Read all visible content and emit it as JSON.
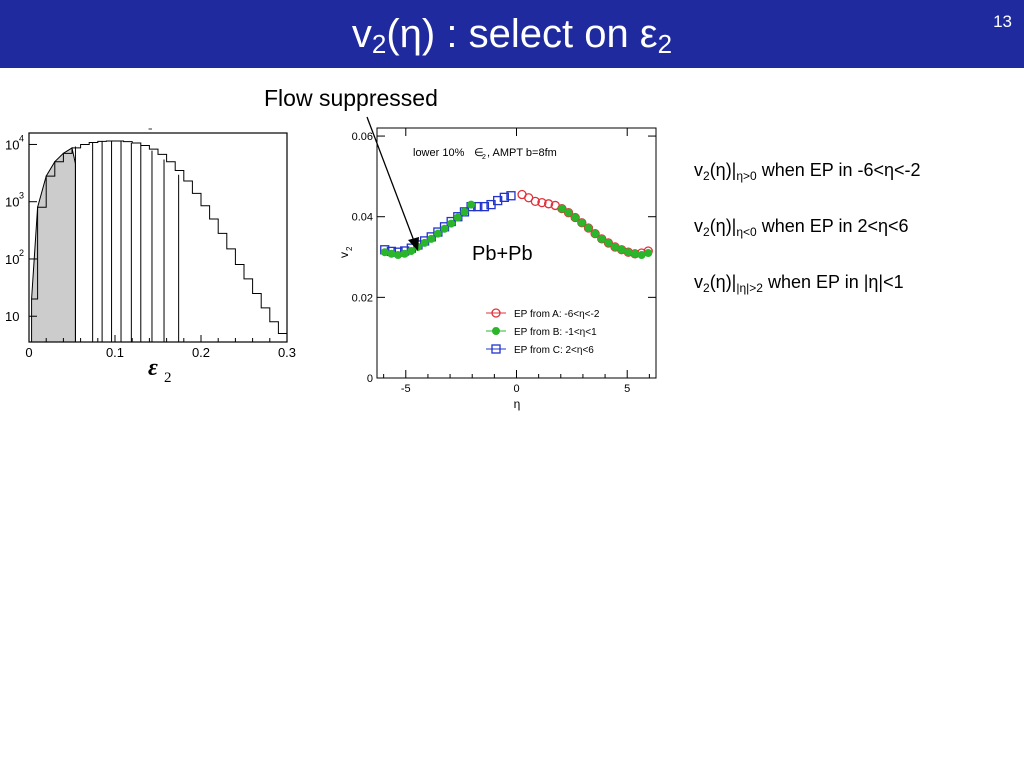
{
  "slide": {
    "title_main": "v",
    "title_sub": "2",
    "title_mid": "(η) : select on ε",
    "title_sub2": "2",
    "page_number": "13",
    "annotation": "Flow suppressed"
  },
  "bullets": [
    {
      "pre": "v",
      "sub1": "2",
      "mid": "(η)|",
      "sub2": "η>0",
      "post": " when EP in -6<η<-2"
    },
    {
      "pre": "v",
      "sub1": "2",
      "mid": "(η)|",
      "sub2": "η<0",
      "post": " when EP in 2<η<6"
    },
    {
      "pre": "v",
      "sub1": "2",
      "mid": "(η)|",
      "sub2": "|η|>2",
      "post": " when EP in |η|<1"
    }
  ],
  "colors": {
    "header": "#1e2a9e",
    "seriesA": "#e0303a",
    "seriesB": "#2bb52b",
    "seriesC": "#2233cc",
    "fill": "#cccccc"
  },
  "chart_data": [
    {
      "type": "area",
      "xlabel": "ε",
      "xlabel_sub": "2",
      "xlim": [
        0,
        0.3
      ],
      "ylim_log10": [
        0.55,
        4.2
      ],
      "ylog": true,
      "xticks": [
        "0",
        "0.1",
        "0.2",
        "0.3"
      ],
      "xtick_values": [
        0,
        0.1,
        0.2,
        0.3
      ],
      "yticks": [
        {
          "base": "10",
          "exp": "4",
          "value": 10000
        },
        {
          "base": "10",
          "exp": "3",
          "value": 1000
        },
        {
          "base": "10",
          "exp": "2",
          "value": 100
        },
        {
          "base": "10",
          "exp": "",
          "value": 10
        }
      ],
      "histogram_x": [
        0.003,
        0.01,
        0.02,
        0.03,
        0.04,
        0.05,
        0.06,
        0.07,
        0.08,
        0.09,
        0.1,
        0.11,
        0.12,
        0.13,
        0.14,
        0.15,
        0.16,
        0.17,
        0.18,
        0.19,
        0.2,
        0.21,
        0.22,
        0.23,
        0.24,
        0.25,
        0.26,
        0.27,
        0.28,
        0.29,
        0.3
      ],
      "histogram_y": [
        20,
        800,
        2800,
        5000,
        7000,
        8700,
        10000,
        10800,
        11300,
        11500,
        11500,
        11200,
        10600,
        9600,
        8300,
        6700,
        5000,
        3500,
        2300,
        1400,
        850,
        500,
        280,
        150,
        80,
        45,
        25,
        14,
        8,
        5,
        4
      ],
      "shaded_upper_edge": 0.054,
      "bin_edges": [
        0.054,
        0.074,
        0.085,
        0.096,
        0.107,
        0.119,
        0.13,
        0.143,
        0.157,
        0.174
      ]
    },
    {
      "type": "scatter",
      "xlabel": "η",
      "ylabel": "v",
      "ylabel_sub": "2",
      "xlim": [
        -6.3,
        6.3
      ],
      "ylim": [
        0,
        0.062
      ],
      "xticks": [
        -5,
        0,
        5
      ],
      "yticks": [
        0,
        0.02,
        0.04,
        0.06
      ],
      "ytick_labels": [
        "0",
        "0.02",
        "0.04",
        "0.06"
      ],
      "annotation": "lower 10% ",
      "annotation_eps": "∈",
      "annotation_sub": "2",
      "annotation_tail": ", AMPT b=8fm",
      "system_label": "Pb+Pb",
      "series": [
        {
          "name": "EP from A: -6<η<-2",
          "marker": "circle-open",
          "x": [
            0.25,
            0.55,
            0.85,
            1.15,
            1.45,
            1.75,
            2.05,
            2.35,
            2.65,
            2.95,
            3.25,
            3.55,
            3.85,
            4.15,
            4.45,
            4.75,
            5.05,
            5.35,
            5.65,
            5.95
          ],
          "y": [
            0.0455,
            0.0447,
            0.0438,
            0.0435,
            0.0432,
            0.0428,
            0.042,
            0.041,
            0.0398,
            0.0385,
            0.0372,
            0.0358,
            0.0345,
            0.0335,
            0.0325,
            0.0318,
            0.0312,
            0.0308,
            0.031,
            0.0315
          ]
        },
        {
          "name": "EP from B: -1<η<1",
          "marker": "circle-filled",
          "x": [
            -5.95,
            -5.65,
            -5.35,
            -5.05,
            -4.75,
            -4.45,
            -4.15,
            -3.85,
            -3.55,
            -3.25,
            -2.95,
            -2.65,
            -2.35,
            -2.05,
            2.05,
            2.35,
            2.65,
            2.95,
            3.25,
            3.55,
            3.85,
            4.15,
            4.45,
            4.75,
            5.05,
            5.35,
            5.65,
            5.95
          ],
          "y": [
            0.0312,
            0.0308,
            0.0305,
            0.0308,
            0.0315,
            0.0325,
            0.0335,
            0.0345,
            0.0358,
            0.037,
            0.0383,
            0.0398,
            0.0412,
            0.043,
            0.042,
            0.041,
            0.0398,
            0.0385,
            0.0372,
            0.0358,
            0.0345,
            0.0335,
            0.0325,
            0.0318,
            0.0312,
            0.0308,
            0.0305,
            0.031
          ]
        },
        {
          "name": "EP from C:  2<η<6",
          "marker": "square-open",
          "x": [
            -5.95,
            -5.65,
            -5.35,
            -5.05,
            -4.75,
            -4.45,
            -4.15,
            -3.85,
            -3.55,
            -3.25,
            -2.95,
            -2.65,
            -2.35,
            -2.05,
            -1.75,
            -1.45,
            -1.15,
            -0.85,
            -0.55,
            -0.25
          ],
          "y": [
            0.0318,
            0.0314,
            0.0312,
            0.0315,
            0.0322,
            0.033,
            0.034,
            0.035,
            0.0362,
            0.0375,
            0.0388,
            0.04,
            0.0412,
            0.0425,
            0.0425,
            0.0425,
            0.043,
            0.044,
            0.0448,
            0.0452
          ]
        }
      ]
    }
  ]
}
